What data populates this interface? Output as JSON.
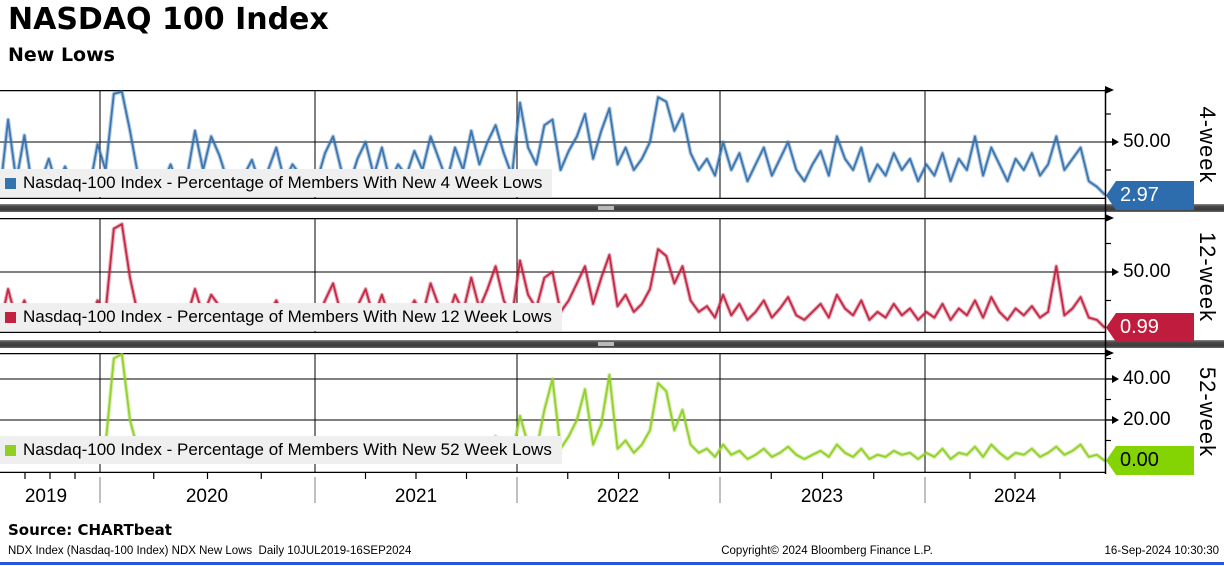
{
  "header": {
    "title": "NASDAQ 100 Index",
    "subtitle": "New Lows"
  },
  "x_axis": {
    "year_labels": [
      "2019",
      "2020",
      "2021",
      "2022",
      "2023",
      "2024"
    ]
  },
  "footer": {
    "source": "Source: CHARTbeat",
    "left": "NDX Index (Nasdaq-100 Index) NDX New Lows  Daily 10JUL2019-16SEP2024",
    "center": "Copyright© 2024 Bloomberg Finance L.P.",
    "right": "16-Sep-2024 10:30:30"
  },
  "colors": {
    "blue_line": "#3572ae",
    "blue_tag": "#2e6dad",
    "red_line": "#c2223f",
    "red_tag": "#c01d3e",
    "green_line": "#8fd023",
    "green_tag": "#83d402",
    "legend_bg": "#efefef",
    "accent_bar": "#2c55dd"
  },
  "chart_data": [
    {
      "type": "line",
      "name": "4-week",
      "legend": "Nasdaq-100 Index - Percentage of Members With New 4 Week Lows",
      "color": "#3572ae",
      "tag_color": "#2e6dad",
      "tag_text_light": true,
      "last_value": 2.97,
      "last_label": "2.97",
      "ylim": [
        0,
        96
      ],
      "y_ticks_major": [
        {
          "value": 50,
          "label": "50.00"
        }
      ],
      "y_ticks_minor": [
        25,
        75
      ],
      "x_start": "10JUL2019",
      "x_end": "16SEP2024",
      "values": [
        5,
        70,
        15,
        56,
        8,
        14,
        35,
        10,
        28,
        12,
        22,
        8,
        48,
        25,
        93,
        95,
        60,
        20,
        8,
        24,
        12,
        30,
        10,
        18,
        60,
        25,
        55,
        38,
        15,
        8,
        20,
        34,
        12,
        25,
        45,
        15,
        30,
        20,
        10,
        15,
        40,
        55,
        25,
        12,
        35,
        50,
        20,
        45,
        15,
        30,
        20,
        42,
        25,
        55,
        35,
        15,
        45,
        25,
        60,
        30,
        50,
        65,
        40,
        20,
        85,
        45,
        30,
        65,
        70,
        25,
        42,
        55,
        75,
        35,
        60,
        80,
        30,
        45,
        25,
        35,
        50,
        90,
        86,
        60,
        75,
        40,
        25,
        35,
        20,
        50,
        25,
        40,
        15,
        30,
        45,
        20,
        35,
        50,
        25,
        15,
        30,
        42,
        20,
        55,
        35,
        25,
        45,
        15,
        30,
        20,
        40,
        25,
        35,
        15,
        30,
        20,
        40,
        15,
        35,
        25,
        55,
        20,
        45,
        30,
        15,
        35,
        25,
        40,
        20,
        30,
        55,
        25,
        35,
        45,
        15,
        10,
        2.97
      ]
    },
    {
      "type": "line",
      "name": "12-week",
      "legend": "Nasdaq-100 Index - Percentage of Members With New 12 Week Lows",
      "color": "#c2223f",
      "tag_color": "#c01d3e",
      "tag_text_light": true,
      "last_value": 0.99,
      "last_label": "0.99",
      "ylim": [
        0,
        97
      ],
      "y_ticks_major": [
        {
          "value": 50,
          "label": "50.00"
        }
      ],
      "y_ticks_minor": [
        25,
        75
      ],
      "x_start": "10JUL2019",
      "x_end": "16SEP2024",
      "values": [
        2,
        35,
        8,
        25,
        4,
        8,
        20,
        5,
        16,
        6,
        12,
        5,
        25,
        15,
        88,
        92,
        45,
        12,
        4,
        12,
        5,
        15,
        6,
        10,
        35,
        12,
        30,
        20,
        8,
        4,
        10,
        18,
        6,
        12,
        25,
        8,
        15,
        10,
        5,
        8,
        25,
        40,
        12,
        6,
        20,
        35,
        10,
        30,
        8,
        18,
        10,
        25,
        12,
        40,
        20,
        8,
        30,
        15,
        45,
        18,
        35,
        55,
        25,
        10,
        60,
        30,
        18,
        45,
        50,
        15,
        25,
        40,
        55,
        22,
        45,
        65,
        20,
        30,
        15,
        22,
        35,
        70,
        64,
        40,
        55,
        25,
        15,
        20,
        10,
        30,
        12,
        22,
        8,
        15,
        25,
        10,
        18,
        28,
        12,
        8,
        15,
        22,
        10,
        30,
        18,
        12,
        25,
        8,
        15,
        10,
        22,
        12,
        18,
        8,
        15,
        10,
        22,
        8,
        18,
        12,
        25,
        10,
        28,
        15,
        8,
        18,
        12,
        20,
        10,
        15,
        55,
        12,
        18,
        28,
        10,
        8,
        0.99
      ]
    },
    {
      "type": "line",
      "name": "52-week",
      "legend": "Nasdaq-100 Index - Percentage of Members With New 52 Week Lows",
      "color": "#8fd023",
      "tag_color": "#83d402",
      "tag_text_light": false,
      "last_value": 0.0,
      "last_label": "0.00",
      "ylim": [
        0,
        52
      ],
      "y_ticks_major": [
        {
          "value": 20,
          "label": "20.00"
        },
        {
          "value": 40,
          "label": "40.00"
        }
      ],
      "y_ticks_minor": [
        10,
        30,
        50
      ],
      "x_start": "10JUL2019",
      "x_end": "16SEP2024",
      "values": [
        0,
        8,
        2,
        5,
        0,
        1,
        6,
        1,
        4,
        1,
        2,
        1,
        4,
        8,
        50,
        53,
        20,
        5,
        1,
        2,
        1,
        3,
        1,
        2,
        8,
        3,
        6,
        4,
        1,
        0,
        1,
        3,
        1,
        2,
        5,
        1,
        3,
        2,
        1,
        1,
        3,
        8,
        2,
        0,
        2,
        5,
        1,
        4,
        1,
        2,
        1,
        3,
        2,
        6,
        3,
        1,
        5,
        2,
        8,
        3,
        6,
        12,
        5,
        2,
        22,
        8,
        5,
        25,
        40,
        6,
        12,
        20,
        35,
        8,
        18,
        42,
        6,
        10,
        4,
        8,
        15,
        38,
        34,
        15,
        25,
        8,
        4,
        6,
        2,
        8,
        3,
        5,
        1,
        3,
        6,
        2,
        4,
        7,
        3,
        1,
        3,
        5,
        2,
        8,
        4,
        2,
        6,
        1,
        3,
        2,
        5,
        3,
        4,
        1,
        4,
        2,
        6,
        1,
        4,
        3,
        7,
        2,
        8,
        4,
        1,
        4,
        3,
        6,
        2,
        4,
        7,
        3,
        5,
        8,
        2,
        3,
        0
      ]
    }
  ]
}
